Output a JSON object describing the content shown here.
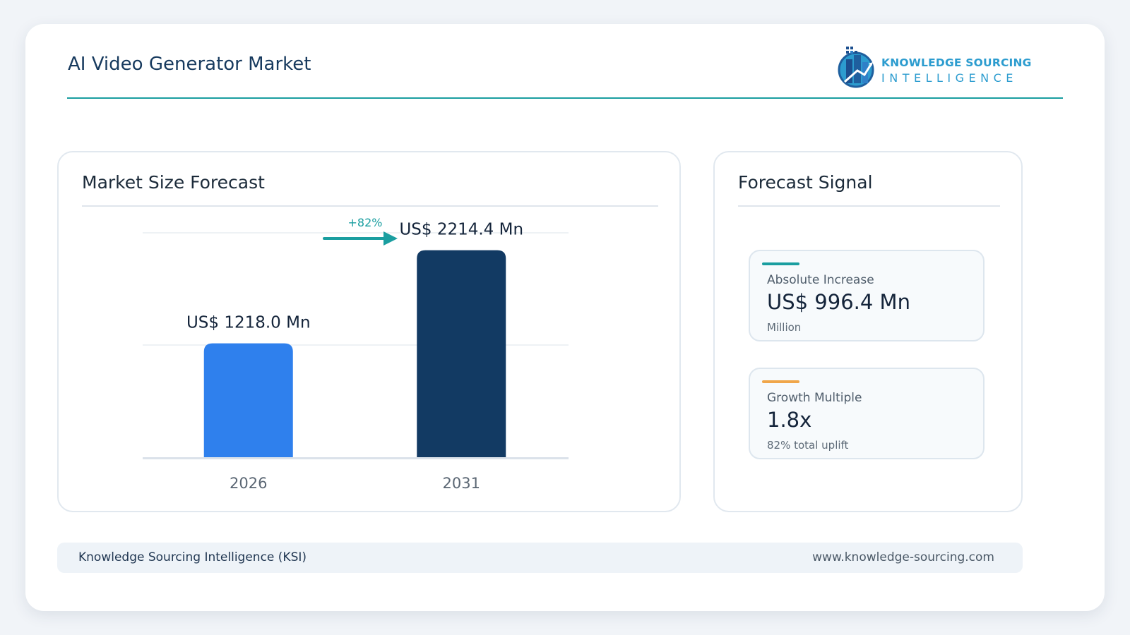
{
  "header": {
    "title": "AI Video Generator Market",
    "logo": {
      "line1": "KNOWLEDGE SOURCING",
      "line2": "INTELLIGENCE",
      "icon": "building-chart-logo-icon"
    }
  },
  "chart_panel": {
    "title": "Market Size Forecast"
  },
  "chart_data": {
    "type": "bar",
    "title": "Market Size Forecast",
    "categories": [
      "2026",
      "2031"
    ],
    "values": [
      1218.0,
      2214.4
    ],
    "data_labels": [
      "US$ 1218.0 Mn",
      "US$ 2214.4 Mn"
    ],
    "colors": [
      "#2f80ed",
      "#123a63"
    ],
    "annotation": {
      "text": "+82%",
      "color": "#1a9ea0"
    },
    "xlabel": "",
    "ylabel": "",
    "ylim": [
      0,
      2400
    ],
    "grid": true,
    "legend": "none"
  },
  "signal_panel": {
    "title": "Forecast Signal",
    "cards": [
      {
        "label": "Absolute Increase",
        "value": "US$ 996.4 Mn",
        "note": "Million",
        "accent": "#1a9ea0"
      },
      {
        "label": "Growth Multiple",
        "value": "1.8x",
        "note": "82% total uplift",
        "accent": "#f0a64a"
      }
    ]
  },
  "footer": {
    "left": "Knowledge Sourcing Intelligence (KSI)",
    "right": "www.knowledge-sourcing.com"
  }
}
